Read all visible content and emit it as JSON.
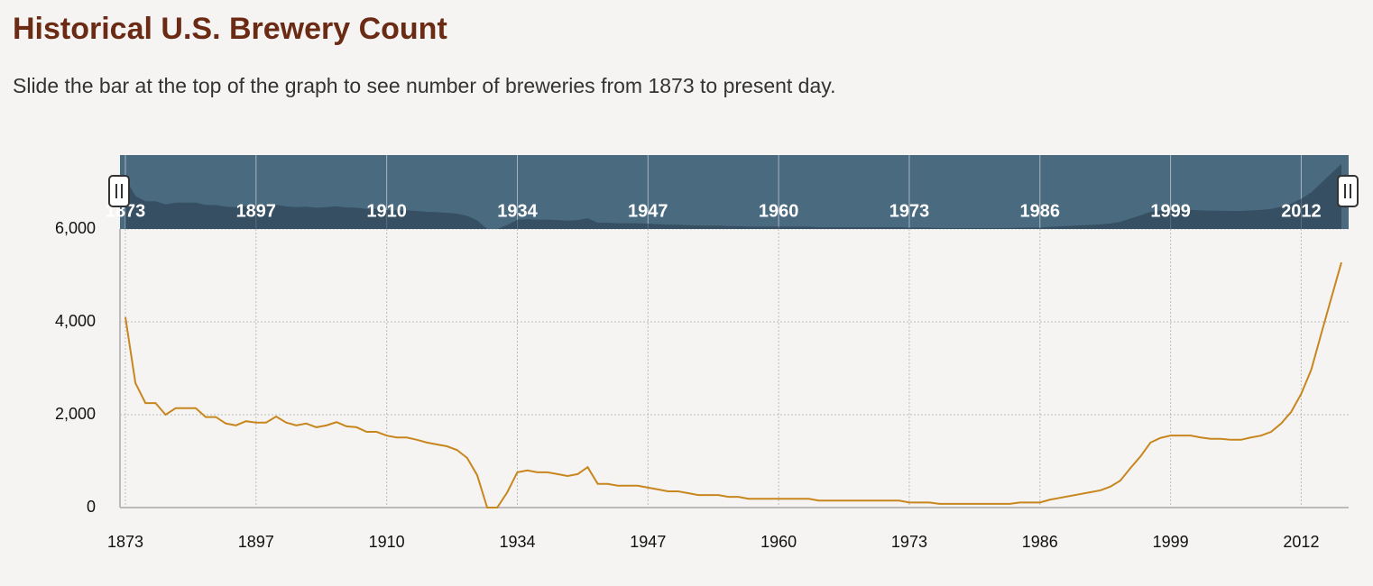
{
  "chart_data": {
    "type": "line",
    "title": "Historical U.S. Brewery Count",
    "subtitle": "Slide the bar at the top of the graph to see number of breweries from 1873 to present day.",
    "categories": [
      "1873",
      null,
      null,
      null,
      null,
      null,
      null,
      null,
      null,
      null,
      null,
      null,
      null,
      "1897",
      null,
      null,
      null,
      null,
      null,
      null,
      null,
      null,
      null,
      null,
      null,
      null,
      "1910",
      null,
      null,
      null,
      null,
      null,
      null,
      null,
      null,
      null,
      null,
      null,
      null,
      "1934",
      null,
      null,
      null,
      null,
      null,
      null,
      null,
      null,
      null,
      null,
      null,
      null,
      "1947",
      null,
      null,
      null,
      null,
      null,
      null,
      null,
      null,
      null,
      null,
      null,
      null,
      "1960",
      null,
      null,
      null,
      null,
      null,
      null,
      null,
      null,
      null,
      null,
      null,
      null,
      "1973",
      null,
      null,
      null,
      null,
      null,
      null,
      null,
      null,
      null,
      null,
      null,
      null,
      "1986",
      null,
      null,
      null,
      null,
      null,
      null,
      null,
      null,
      null,
      null,
      null,
      null,
      "1999",
      null,
      null,
      null,
      null,
      null,
      null,
      null,
      null,
      null,
      null,
      null,
      null,
      "2012",
      null,
      null,
      null,
      null
    ],
    "series": [
      {
        "color": "#c8861e",
        "values": [
          4100,
          2680,
          2250,
          2250,
          2000,
          2140,
          2140,
          2140,
          1950,
          1950,
          1810,
          1770,
          1860,
          1830,
          1830,
          1960,
          1830,
          1770,
          1810,
          1730,
          1770,
          1840,
          1750,
          1730,
          1630,
          1630,
          1550,
          1510,
          1510,
          1460,
          1400,
          1360,
          1320,
          1240,
          1070,
          700,
          0,
          0,
          330,
          760,
          800,
          760,
          760,
          720,
          680,
          720,
          870,
          510,
          510,
          470,
          470,
          470,
          430,
          390,
          350,
          350,
          310,
          270,
          270,
          270,
          230,
          230,
          190,
          190,
          190,
          190,
          190,
          190,
          190,
          150,
          150,
          150,
          150,
          150,
          150,
          150,
          150,
          150,
          110,
          110,
          110,
          80,
          80,
          80,
          80,
          80,
          80,
          80,
          80,
          110,
          110,
          110,
          170,
          210,
          250,
          290,
          330,
          370,
          450,
          580,
          850,
          1100,
          1400,
          1500,
          1550,
          1550,
          1550,
          1510,
          1480,
          1480,
          1460,
          1460,
          1510,
          1550,
          1630,
          1810,
          2060,
          2450,
          2970,
          3750,
          4520,
          5280
        ]
      }
    ],
    "ylim": [
      0,
      6000
    ],
    "yticks": [
      0,
      {
        "value": 2000,
        "label": "2,000"
      },
      {
        "value": 4000,
        "label": "4,000"
      },
      {
        "value": 6000,
        "label": "6,000"
      }
    ],
    "grid": true
  }
}
